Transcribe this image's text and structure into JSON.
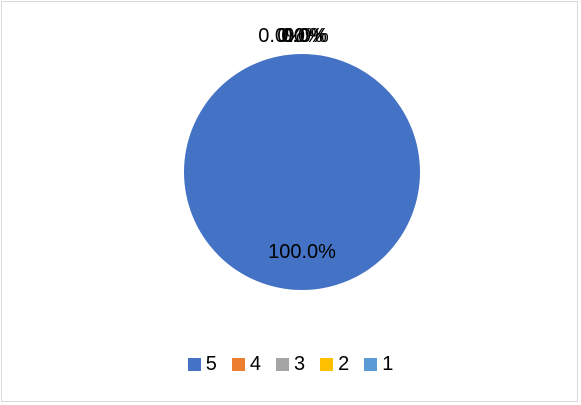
{
  "chart_data": {
    "type": "pie",
    "categories": [
      "5",
      "4",
      "3",
      "2",
      "1"
    ],
    "values": [
      100.0,
      0.0,
      0.0,
      0.0,
      0.0
    ],
    "data_labels": [
      "100.0%",
      "0.0%",
      "0.0%",
      "0.0%",
      "0.0%"
    ],
    "colors": [
      "#4472c4",
      "#ed7d31",
      "#a5a5a5",
      "#ffc000",
      "#5b9bd5"
    ],
    "title": "",
    "legend_position": "bottom"
  },
  "legend": {
    "items": [
      {
        "label": "5",
        "color": "#4472c4"
      },
      {
        "label": "4",
        "color": "#ed7d31"
      },
      {
        "label": "3",
        "color": "#a5a5a5"
      },
      {
        "label": "2",
        "color": "#ffc000"
      },
      {
        "label": "1",
        "color": "#5b9bd5"
      }
    ]
  }
}
